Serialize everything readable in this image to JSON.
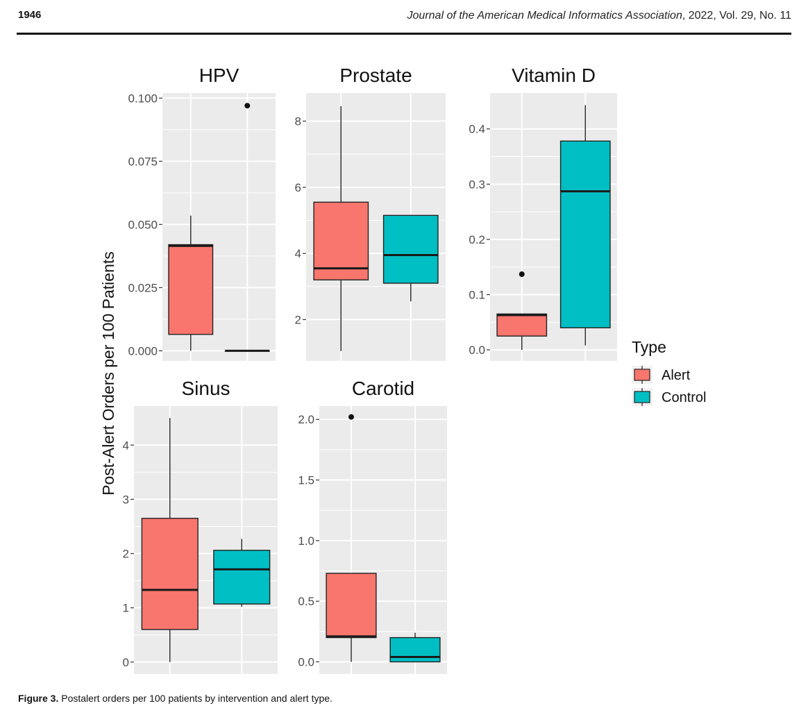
{
  "header": {
    "page_number": "1946",
    "journal_italic": "Journal of the American Medical Informatics Association",
    "journal_rest": ", 2022, Vol. 29, No. 11"
  },
  "caption": {
    "label": "Figure 3.",
    "text": " Postalert orders per 100 patients by intervention and alert type."
  },
  "colors": {
    "alert": "#F8766D",
    "control": "#00BFC4",
    "panel_bg": "#EBEBEB",
    "grid": "#FFFFFF"
  },
  "chart_data": {
    "type": "box",
    "ylabel": "Post-Alert Orders per 100 Patients",
    "legend": {
      "title": "Type",
      "entries": [
        "Alert",
        "Control"
      ],
      "position": "right"
    },
    "panels": [
      {
        "title": "HPV",
        "ylim": [
          -0.004,
          0.102
        ],
        "ticks": [
          0,
          0.025,
          0.05,
          0.075,
          0.1
        ],
        "tick_labels": [
          "0.000",
          "0.025",
          "0.050",
          "0.075",
          "0.100"
        ],
        "boxes": [
          {
            "type": "Alert",
            "min": 0.0,
            "q1": 0.0065,
            "median": 0.0415,
            "q3": 0.042,
            "max": 0.0535,
            "outliers": []
          },
          {
            "type": "Control",
            "min": 0.0,
            "q1": 0.0,
            "median": 0.0,
            "q3": 0.0,
            "max": 0.0,
            "outliers": [
              0.097
            ]
          }
        ]
      },
      {
        "title": "Prostate",
        "ylim": [
          0.75,
          8.85
        ],
        "ticks": [
          2,
          4,
          6,
          8
        ],
        "tick_labels": [
          "2",
          "4",
          "6",
          "8"
        ],
        "boxes": [
          {
            "type": "Alert",
            "min": 1.05,
            "q1": 3.2,
            "median": 3.55,
            "q3": 5.55,
            "max": 8.45,
            "outliers": []
          },
          {
            "type": "Control",
            "min": 2.55,
            "q1": 3.1,
            "median": 3.95,
            "q3": 5.15,
            "max": 5.15,
            "outliers": []
          }
        ]
      },
      {
        "title": "Vitamin D",
        "ylim": [
          -0.02,
          0.465
        ],
        "ticks": [
          0,
          0.1,
          0.2,
          0.3,
          0.4
        ],
        "tick_labels": [
          "0.0",
          "0.1",
          "0.2",
          "0.3",
          "0.4"
        ],
        "boxes": [
          {
            "type": "Alert",
            "min": 0.0,
            "q1": 0.025,
            "median": 0.063,
            "q3": 0.065,
            "max": 0.065,
            "outliers": [
              0.137
            ]
          },
          {
            "type": "Control",
            "min": 0.008,
            "q1": 0.04,
            "median": 0.287,
            "q3": 0.378,
            "max": 0.443,
            "outliers": []
          }
        ]
      },
      {
        "title": "Sinus",
        "ylim": [
          -0.22,
          4.72
        ],
        "ticks": [
          0,
          1,
          2,
          3,
          4
        ],
        "tick_labels": [
          "0",
          "1",
          "2",
          "3",
          "4"
        ],
        "boxes": [
          {
            "type": "Alert",
            "min": 0.0,
            "q1": 0.6,
            "median": 1.33,
            "q3": 2.65,
            "max": 4.5,
            "outliers": []
          },
          {
            "type": "Control",
            "min": 1.02,
            "q1": 1.07,
            "median": 1.71,
            "q3": 2.06,
            "max": 2.27,
            "outliers": []
          }
        ]
      },
      {
        "title": "Carotid",
        "ylim": [
          -0.1,
          2.11
        ],
        "ticks": [
          0,
          0.5,
          1.0,
          1.5,
          2.0
        ],
        "tick_labels": [
          "0.0",
          "0.5",
          "1.0",
          "1.5",
          "2.0"
        ],
        "boxes": [
          {
            "type": "Alert",
            "min": 0.0,
            "q1": 0.2,
            "median": 0.21,
            "q3": 0.73,
            "max": 0.73,
            "outliers": [
              2.02
            ]
          },
          {
            "type": "Control",
            "min": 0.0,
            "q1": 0.0,
            "median": 0.04,
            "q3": 0.2,
            "max": 0.24,
            "outliers": []
          }
        ]
      }
    ]
  }
}
